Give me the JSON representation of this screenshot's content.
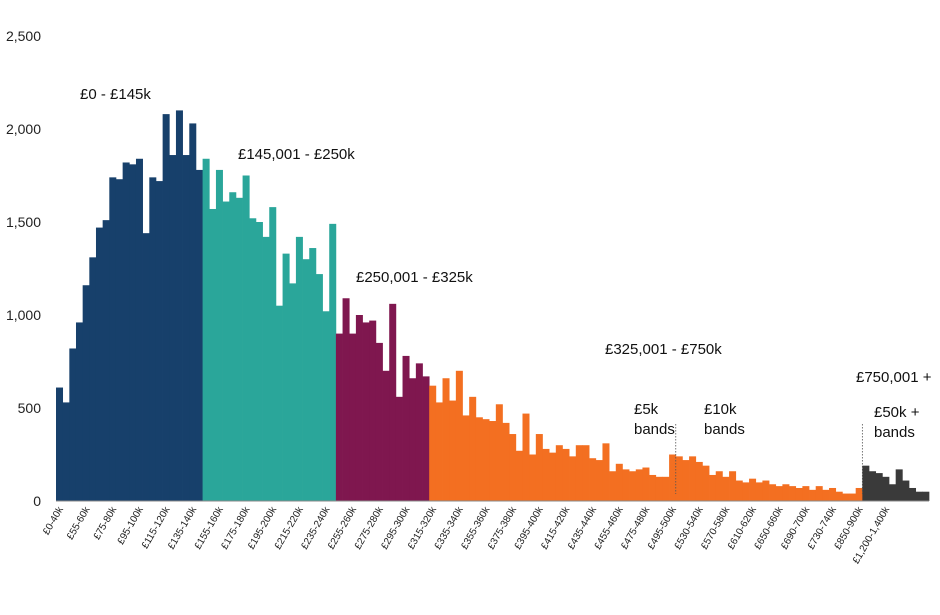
{
  "chart_data": {
    "type": "bar",
    "title": "",
    "xlabel": "",
    "ylabel": "",
    "ylim": [
      0,
      2500
    ],
    "yticks": [
      {
        "value": 0,
        "label": "0"
      },
      {
        "value": 500,
        "label": "500"
      },
      {
        "value": 1000,
        "label": "1,000"
      },
      {
        "value": 1500,
        "label": "1,500"
      },
      {
        "value": 2000,
        "label": "2,000"
      },
      {
        "value": 2500,
        "label": "2,500"
      }
    ],
    "grid": false,
    "legend": "none",
    "band_colors": {
      "band1": "#17406b",
      "band2": "#2aa69a",
      "band3": "#7f174f",
      "band4": "#f36f21",
      "band5": "#3a3a3a"
    },
    "band_labels": [
      {
        "band": "band1",
        "text": "£0 - £145k"
      },
      {
        "band": "band2",
        "text": "£145,001 - £250k"
      },
      {
        "band": "band3",
        "text": "£250,001 - £325k"
      },
      {
        "band": "band4",
        "text": "£325,001 - £750k"
      },
      {
        "band": "band5",
        "text": "£750,001 +"
      }
    ],
    "annotations": [
      {
        "text": [
          "£5k",
          "bands"
        ]
      },
      {
        "text": [
          "£10k",
          "bands"
        ]
      },
      {
        "text": [
          "£50k +",
          "bands"
        ]
      }
    ],
    "tick_labels": [
      "£0-40k",
      "£55-60k",
      "£75-80k",
      "£95-100k",
      "£115-120k",
      "£135-140k",
      "£155-160k",
      "£175-180k",
      "£195-200k",
      "£215-220k",
      "£235-240k",
      "£255-260k",
      "£275-280k",
      "£295-300k",
      "£315-320k",
      "£335-340k",
      "£355-360k",
      "£375-380k",
      "£395-400k",
      "£415-420k",
      "£435-440k",
      "£455-460k",
      "£475-480k",
      "£495-500k",
      "£530-540k",
      "£570-580k",
      "£610-620k",
      "£650-660k",
      "£690-700k",
      "£730-740k",
      "£850-900k",
      "£1,200-1,400k"
    ],
    "tick_positions": [
      0,
      4,
      8,
      12,
      16,
      20,
      24,
      28,
      32,
      36,
      40,
      44,
      48,
      52,
      56,
      60,
      64,
      68,
      72,
      76,
      80,
      84,
      88,
      92,
      96,
      100,
      104,
      108,
      112,
      116,
      120,
      124
    ],
    "series": [
      {
        "band": "band1",
        "values": [
          610,
          530,
          820,
          960,
          1160,
          1310,
          1470,
          1510,
          1740,
          1730,
          1820,
          1810,
          1840,
          1440,
          1740,
          1720,
          2080,
          1860,
          2100,
          1860,
          2030,
          1780
        ]
      },
      {
        "band": "band2",
        "values": [
          1840,
          1570,
          1780,
          1610,
          1660,
          1630,
          1750,
          1520,
          1500,
          1420,
          1580,
          1050,
          1330,
          1170,
          1420,
          1300,
          1360,
          1220,
          1020,
          1490
        ]
      },
      {
        "band": "band3",
        "values": [
          900,
          1090,
          900,
          1000,
          960,
          970,
          850,
          700,
          1060,
          560,
          780,
          660,
          740,
          670
        ]
      },
      {
        "band": "band4",
        "values": [
          620,
          530,
          660,
          540,
          700,
          460,
          560,
          450,
          440,
          430,
          520,
          420,
          360,
          270,
          470,
          250,
          360,
          280,
          260,
          300,
          280,
          240,
          300,
          300,
          230,
          220,
          310,
          160,
          200,
          170,
          160,
          170,
          180,
          140,
          130,
          130,
          250,
          240,
          220,
          240,
          210,
          190,
          140,
          160,
          130,
          160,
          110,
          100,
          120,
          100,
          110,
          90,
          80,
          90,
          80,
          70,
          80,
          60,
          80,
          60,
          70,
          50,
          40,
          40,
          70
        ]
      },
      {
        "band": "band5",
        "values": [
          190,
          160,
          150,
          130,
          90,
          170,
          110,
          70,
          50,
          50
        ]
      }
    ]
  }
}
